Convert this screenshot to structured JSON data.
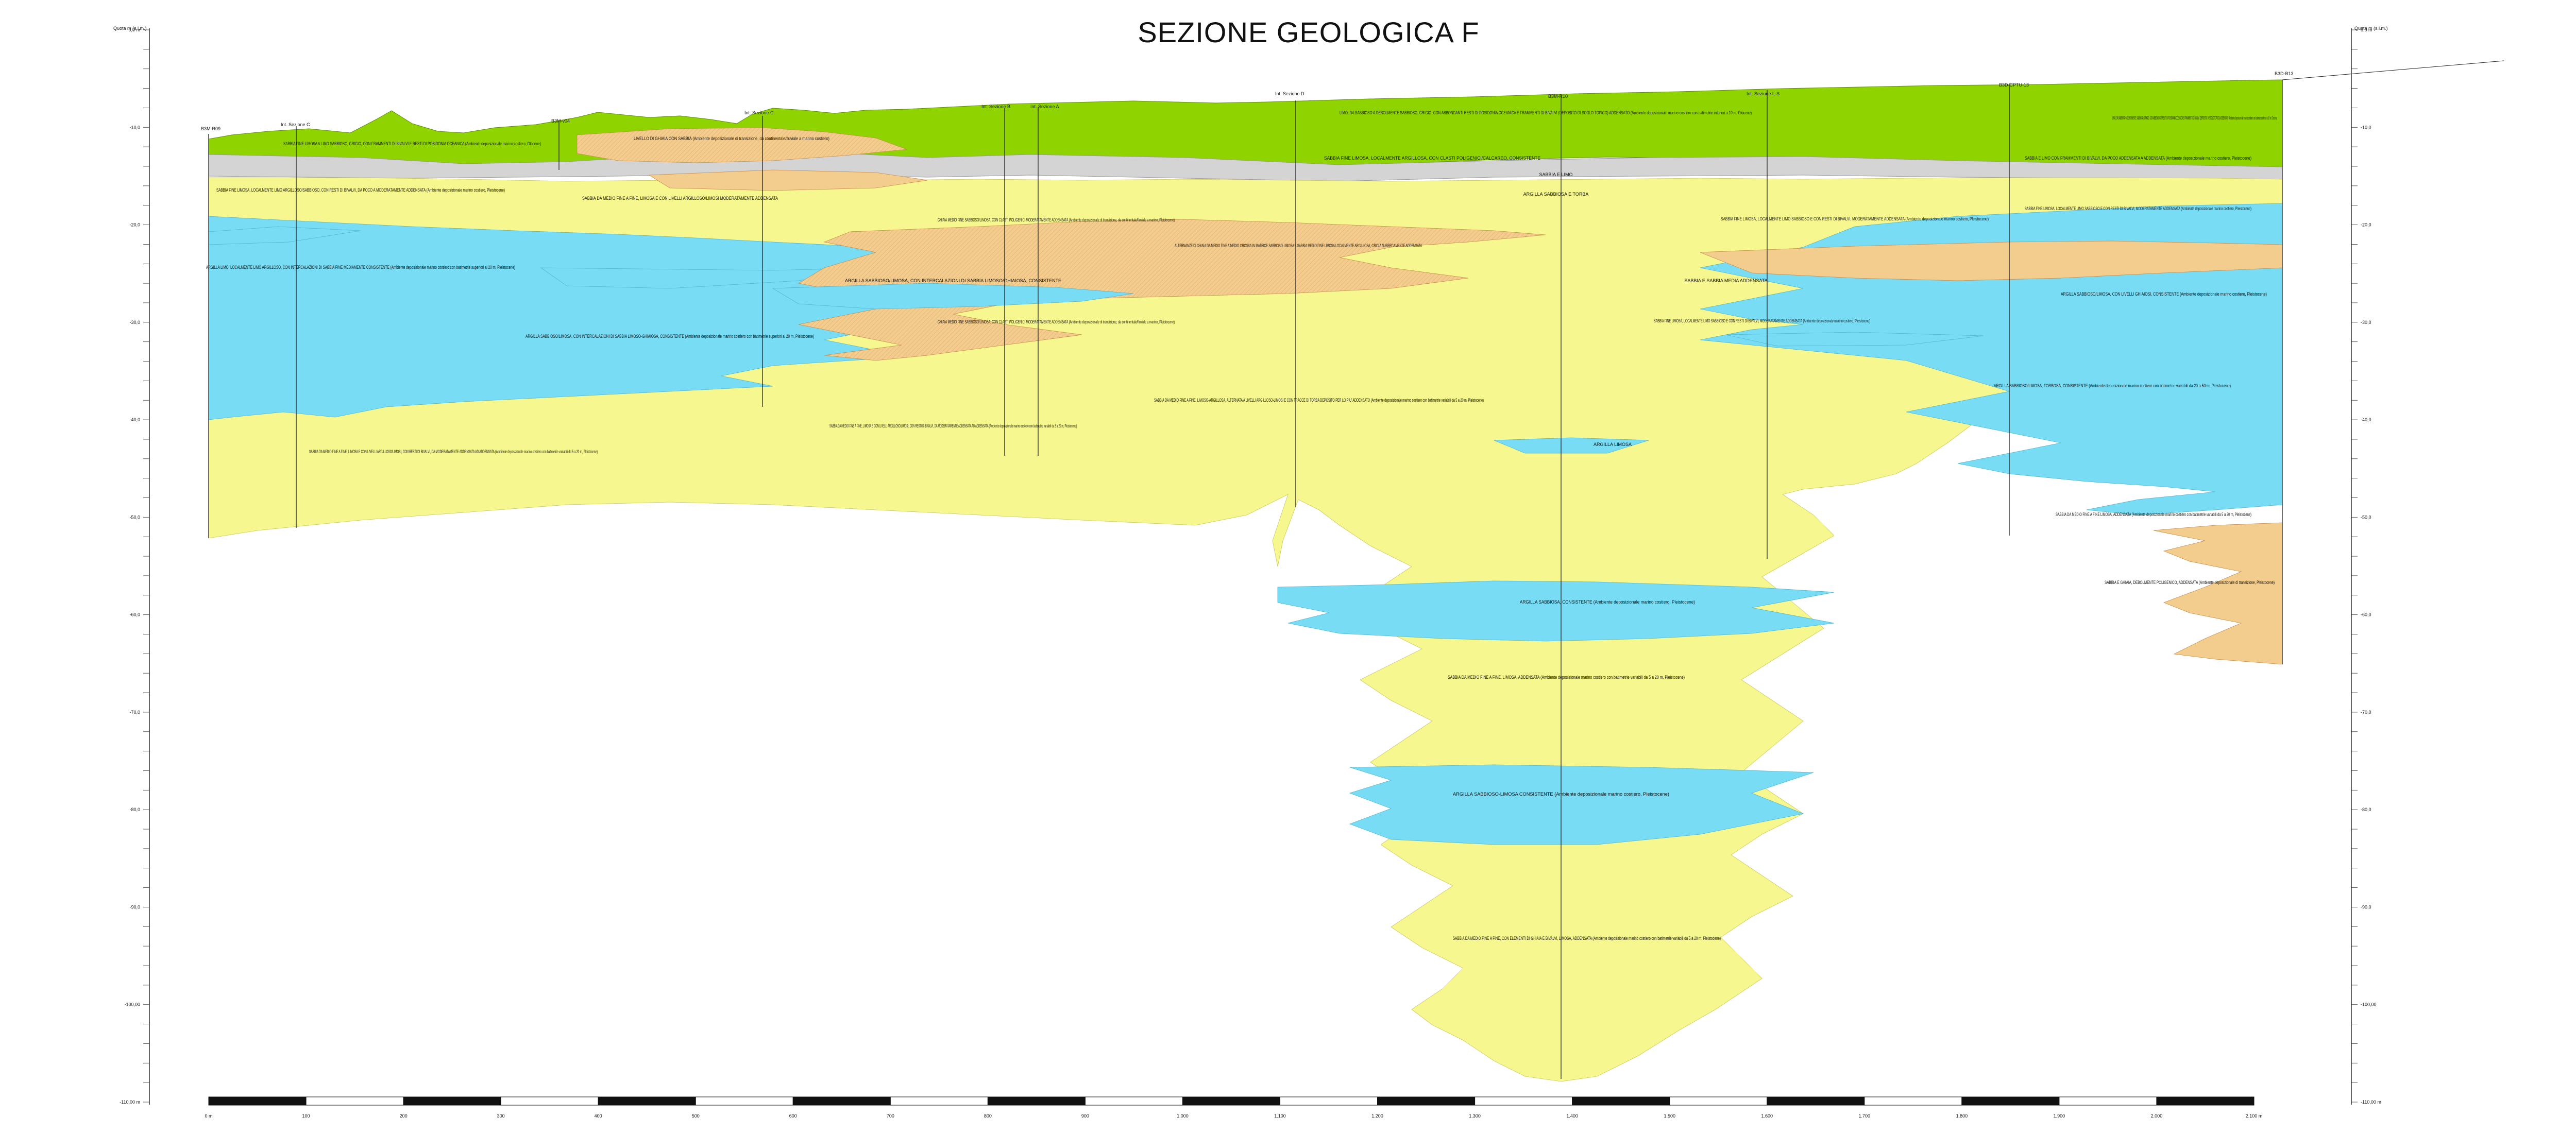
{
  "title": "SEZIONE GEOLOGICA F",
  "axis": {
    "left_header": "Quota m (s.l.m.)",
    "right_header": "Quota m (s.l.m.)",
    "ticks": [
      "0,0 m",
      "-10,0",
      "-20,0",
      "-30,0",
      "-40,0",
      "-50,0",
      "-60,0",
      "-70,0",
      "-80,0",
      "-90,0",
      "-100,00",
      "-110,00 m"
    ]
  },
  "scale_bar": {
    "labels": [
      "0 m",
      "100",
      "200",
      "300",
      "400",
      "500",
      "600",
      "700",
      "800",
      "900",
      "1.000",
      "1.100",
      "1.200",
      "1.300",
      "1.400",
      "1.500",
      "1.600",
      "1.700",
      "1.800",
      "1.900",
      "2.000",
      "2.100 m"
    ]
  },
  "boreholes": [
    {
      "name": "B3M-R09"
    },
    {
      "name": "Int. Sezione C"
    },
    {
      "name": "B3M-v04"
    },
    {
      "name": "Int. Sezione B"
    },
    {
      "name": "Int. Sezione A"
    },
    {
      "name": "Int. Sezione D"
    },
    {
      "name": "B3M-R10"
    },
    {
      "name": "Int. Sezione L-S"
    },
    {
      "name": "B3D-CPTU-13"
    },
    {
      "name": "B3D-B13"
    }
  ],
  "units": [
    {
      "label": "LIMO, DA SABBIOSO A DEBOLMENTE SABBIOSO, GRIGIO, CON ABBONDANTI RESTI DI POSIDONIA OCEANICA E FRAMMENTI DI BIVALVI (DEPOSITO DI SCOLO TOPICO) ADDENSATO (Ambiente deposizionale marino costiero con batimetrie inferiori a 10 m. Olocene)"
    },
    {
      "label": "SABBIA FINE LIMOSA A LIMO SABBIOSO, GRIGIO, CON FRAMMENTI DI BIVALVI E RESTI DI POSIDONIA OCEANICA (Ambiente deposizionale marino costiero, Olocene)"
    },
    {
      "label": "LIVELLO DI GHIAIA CON SABBIA (Ambiente deposizionale di transizione, da continentale/fluviale a marino costiero)"
    },
    {
      "label": "SABBIA FINE LIMOSA, LOCALMENTE LIMO ARGILLOSO/SABBIOSO, CON RESTI DI BIVALVI, DA POCO A MODERATAMENTE ADDENSATA (Ambiente deposizionale marino costiero, Pleistocene)"
    },
    {
      "label": "SABBIA DA MEDIO FINE A FINE, LIMOSA E CON LIVELLI ARGILLOSO/LIMOSI MODERATAMENTE ADDENSATA"
    },
    {
      "label": "ARGILLA LIMO, LOCALMENTE LIMO ARGILLOSO, CON INTERCALAZIONI DI SABBIA FINE MEDIAMENTE CONSISTENTE (Ambiente deposizionale marino costiero con batimetrie superiori ai 20 m, Pleistocene)"
    },
    {
      "label": "ARGILLA SABBIOSO/LIMOSA, CON INTERCALAZIONI DI SABBIA LIMOSO/GHIAIOSA, CONSISTENTE"
    },
    {
      "label": "ARGILLA SABBIOSO/LIMOSA, CON INTERCALAZIONI DI SABBIA LIMOSO-GHIAIOSA, CONSISTENTE (Ambiente deposizionale marino costiero con batimetrie superiori ai 20 m, Pleistocene)"
    },
    {
      "label": "SABBIA DA MEDIO FINE A FINE, LIMOSA E CON LIVELLI ARGILLOSO/LIMOSI, CON RESTI DI BIVALVI, DA MODERATAMENTE ADDENSATA AD ADDENSATA (Ambiente deposizionale marino costiero con batimetrie variabili da 5 a 20 m, Pleistocene)"
    },
    {
      "label": "GHIAIA MEDIO FINE SABBIOSO/LIMOSA, CON CLASTI POLIGENICI MODERATAMENTE ADDENSATA (Ambiente deposizionale di transizione, da continentale/fluviale a marino, Pleistocene)"
    },
    {
      "label": "ALTERNANZE DI GHIAIA DA MEDIO FINE A MEDIO GROSSA IN MATRICE SABBIOSO-LIMOSA E SABBIA MEDIO FINE LIMOSA LOCALMENTE ARGILLOSA, GRIGIA NUBERGAMENTE ADDENSATA"
    },
    {
      "label": "SABBIA DA MEDIO FINE A FINE, LIMOSO-ARGILLOSA, ALTERNATA A LIVELLI ARGILLOSO-LIMOSI E CON TRACCE DI TORBA DEPOSITO PER LO PIU' ADDENSATO (Ambiente deposizionale marino costiero con batimetrie variabili da 5 a 20 m, Pleistocene)"
    },
    {
      "label": "ARGILLA LIMOSA"
    },
    {
      "label": "ARGILLA SABBIOSA, CONSISTENTE (Ambiente deposizionale marino costiero, Pleistocene)"
    },
    {
      "label": "SABBIA DA MEDIO FINE A FINE, LIMOSA, ADDENSATA (Ambiente deposizionale marino costiero con batimetrie variabili da 5 a 20 m, Pleistocene)"
    },
    {
      "label": "ARGILLA SABBIOSO-LIMOSA CONSISTENTE (Ambiente deposizionale marino costiero, Pleistocene)"
    },
    {
      "label": "SABBIA DA MEDIO FINE A FINE, CON ELEMENTI DI GHIAIA E BIVALVI, LIMOSA, ADDENSATA (Ambiente deposizionale marino costiero con batimetrie variabili da 5 a 20 m, Pleistocene)"
    },
    {
      "label": "SABBIA FINE LIMOSA, LOCALMENTE LIMO SABBIOSO E CON RESTI DI BIVALVI, MODERATAMENTE ADDENSATA (Ambiente deposizionale marino costiero, Pleistocene)"
    },
    {
      "label": "SABBIA E LIMO CON FRAMMENTI DI BIVALVI, DA POCO ADDENSATA A ADDENSATA (Ambiente deposizionale marino costiero, Pleistocene)"
    },
    {
      "label": "ARGILLA SABBIOSO/LIMOSA, CON LIVELLI GHIAIOSI, CONSISTENTE (Ambiente deposizionale marino costiero, Pleistocene)"
    },
    {
      "label": "ARGILLA SABBIOSO/LIMOSA, TORBOSA, CONSISTENTE (Ambiente deposizionale marino costiero con batimetrie variabili da 20 a 50 m, Pleistocene)"
    },
    {
      "label": "SABBIA DA MEDIO FINE A FINE LIMOSA, ADDENSATA (Ambiente deposizionale marino costiero con batimetrie variabili da 5 a 20 m, Pleistocene)"
    },
    {
      "label": "SABBIA E GHIAIA, DEBOLMENTE POLIGENICO, ADDENSATA (Ambiente deposizionale di transizione, Pleistocene)"
    },
    {
      "label": "SABBIA FINE LIMOSA, LOCALMENTE ARGILLOSA, CON CLASTI POLIGENICI/CALCAREO, CONSISTENTE"
    },
    {
      "label": "SABBIA E LIMO"
    },
    {
      "label": "ARGILLA SABBIOSA E TORBA"
    },
    {
      "label": "SABBIA E SABBIA MEDIA ADDENSATA"
    }
  ],
  "colors": {
    "green": "#8fd400",
    "yellow": "#f6f78f",
    "blue": "#79dcf5",
    "orange": "#f3cd8d",
    "grey": "#d9d9d9"
  }
}
